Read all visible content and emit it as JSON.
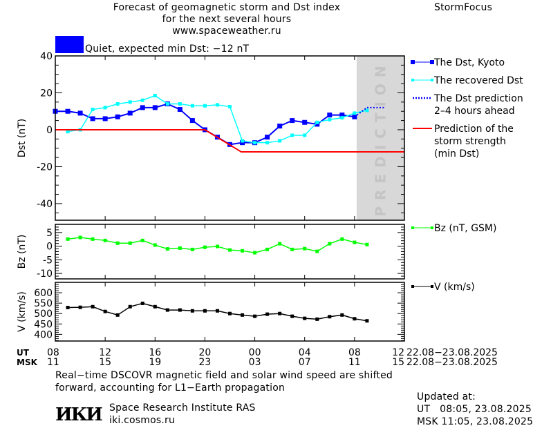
{
  "header": {
    "title_lines": [
      "Forecast of geomagnetic storm and Dst index",
      "for the next several hours",
      "www.spaceweather.ru"
    ],
    "brand": "StormFocus",
    "status_text": "Quiet, expected min Dst: −12 nT",
    "status_color": "#0000ff"
  },
  "chart_data": [
    {
      "type": "line",
      "ylabel": "Dst (nT)",
      "ylim": [
        -49,
        40
      ],
      "yticks": [
        40,
        20,
        0,
        -20,
        -40
      ],
      "prediction_label": "PREDICTION",
      "prediction_from": "23.08 08:10",
      "series": [
        {
          "name": "The Dst, Kyoto",
          "color": "#0000ff",
          "start": "22.08 08:00",
          "step_hours": 1,
          "values": [
            10,
            10,
            9,
            6,
            6,
            7,
            9,
            12,
            12,
            14,
            11,
            5,
            0,
            -4,
            -8,
            -7,
            -7,
            -4,
            2,
            5,
            4,
            3,
            8,
            8,
            7
          ]
        },
        {
          "name": "The recovered Dst",
          "color": "#00ffff",
          "start": "22.08 09:00",
          "step_hours": 1,
          "values": [
            -1,
            0,
            11,
            12,
            14,
            15,
            16,
            18.5,
            14,
            14,
            13,
            13,
            13.5,
            12.5,
            -6,
            -7,
            -7,
            -6,
            -3,
            -3,
            4,
            5.5,
            6.5,
            9,
            10.5
          ]
        },
        {
          "name": "The Dst prediction 2–4 hours ahead",
          "color": "#0000ff",
          "style": "dotted",
          "points": [
            [
              "23.08 08:00",
              7
            ],
            [
              "23.08 09:00",
              12
            ],
            [
              "23.08 10:30",
              12
            ]
          ]
        },
        {
          "name": "Prediction of the storm strength (min Dst)",
          "color": "#ff0000",
          "points": [
            [
              "22.08 08:00",
              0
            ],
            [
              "22.08 20:00",
              0
            ],
            [
              "22.08 22:55",
              -12
            ],
            [
              "23.08 12:00",
              -12
            ]
          ]
        }
      ],
      "legend": [
        {
          "lines": [
            "The Dst, Kyoto"
          ],
          "color": "#0000ff",
          "kind": "marker-big"
        },
        {
          "lines": [
            "The recovered Dst"
          ],
          "color": "#00ffff",
          "kind": "marker-small"
        },
        {
          "lines": [
            "The Dst prediction",
            "2–4 hours ahead"
          ],
          "color": "#0000ff",
          "kind": "dotted"
        },
        {
          "lines": [
            "Prediction of the",
            "storm strength",
            "(min Dst)"
          ],
          "color": "#ff0000",
          "kind": "line"
        }
      ]
    },
    {
      "type": "line",
      "ylabel": "Bz (nT)",
      "ylim": [
        -12,
        8
      ],
      "yticks": [
        5,
        0,
        -5,
        -10
      ],
      "series": [
        {
          "name": "Bz (nT, GSM)",
          "color": "#00ff00",
          "start": "22.08 09:00",
          "step_hours": 1,
          "values": [
            2.6,
            3.2,
            2.6,
            2.1,
            1.1,
            1.1,
            2.1,
            0.4,
            -1.0,
            -0.7,
            -1.2,
            -0.4,
            -0.1,
            -1.4,
            -1.7,
            -2.4,
            -1.2,
            0.9,
            -1.2,
            -0.9,
            -1.9,
            0.9,
            2.6,
            1.4,
            0.6
          ]
        }
      ],
      "legend": [
        {
          "lines": [
            "Bz (nT, GSM)"
          ],
          "color": "#00ff00",
          "kind": "marker-small"
        }
      ]
    },
    {
      "type": "line",
      "ylabel": "V (km/s)",
      "ylim": [
        368,
        650
      ],
      "yticks": [
        600,
        550,
        500,
        450,
        400
      ],
      "series": [
        {
          "name": "V (km/s)",
          "color": "#000000",
          "start": "22.08 09:00",
          "step_hours": 1,
          "values": [
            529,
            530,
            533,
            510,
            493,
            533,
            549,
            533,
            517,
            517,
            513,
            513,
            513,
            500,
            493,
            487,
            497,
            500,
            487,
            477,
            473,
            485,
            493,
            475,
            465
          ]
        }
      ],
      "legend": [
        {
          "lines": [
            "V (km/s)"
          ],
          "color": "#000000",
          "kind": "marker-small"
        }
      ]
    }
  ],
  "time_axis": {
    "start": "22.08 08:00",
    "end": "23.08 12:00",
    "ut_label": "UT",
    "msk_label": "MSK",
    "ut_ticks": [
      "08",
      "12",
      "16",
      "20",
      "00",
      "04",
      "08",
      "12"
    ],
    "msk_ticks": [
      "11",
      "15",
      "19",
      "23",
      "03",
      "07",
      "11",
      "15"
    ],
    "ut_date": "22.08−23.08.2025",
    "msk_date": "22.08−23.08.2025"
  },
  "footer": {
    "note_lines": [
      "Real−time DSCOVR magnetic field and solar wind speed are shifted",
      "forward, accounting for L1−Earth propagation"
    ],
    "logo_text": "ИКИ",
    "institute": "Space Research Institute RAS",
    "site": "iki.cosmos.ru",
    "updated_label": "Updated at:",
    "updated_ut": "UT   08:05, 23.08.2025",
    "updated_msk": "MSK 11:05, 23.08.2025"
  }
}
